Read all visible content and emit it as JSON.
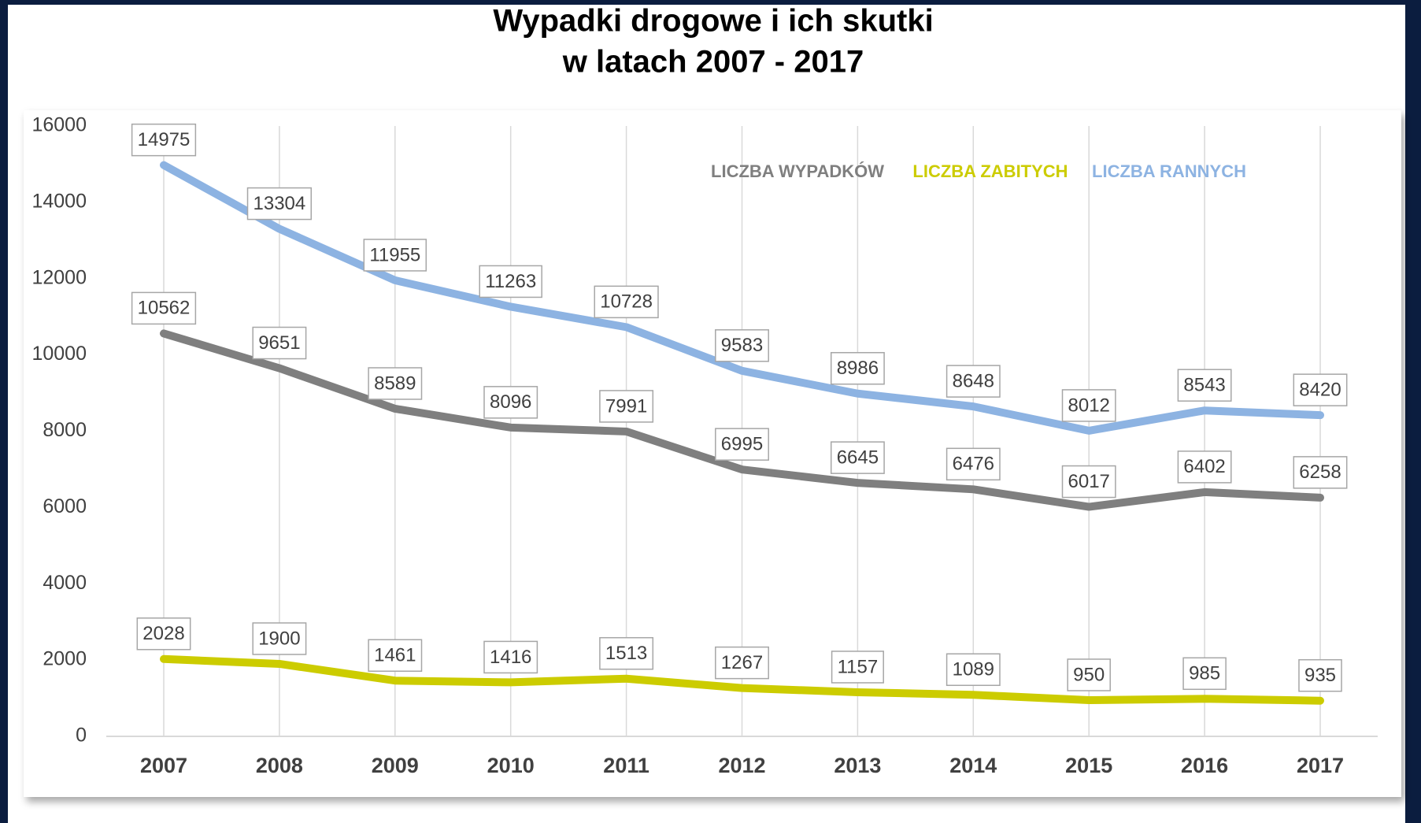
{
  "chart_data": {
    "type": "line",
    "title": "Wypadki drogowe i ich skutki",
    "subtitle": "w latach 2007 -  2017",
    "categories": [
      "2007",
      "2008",
      "2009",
      "2010",
      "2011",
      "2012",
      "2013",
      "2014",
      "2015",
      "2016",
      "2017"
    ],
    "series": [
      {
        "name": "LICZBA WYPADKÓW",
        "color": "#7f7f7f",
        "values": [
          10562,
          9651,
          8589,
          8096,
          7991,
          6995,
          6645,
          6476,
          6017,
          6402,
          6258
        ]
      },
      {
        "name": "LICZBA ZABITYCH",
        "color": "#cccc00",
        "values": [
          2028,
          1900,
          1461,
          1416,
          1513,
          1267,
          1157,
          1089,
          950,
          985,
          935
        ]
      },
      {
        "name": "LICZBA RANNYCH",
        "color": "#8db3e2",
        "values": [
          14975,
          13304,
          11955,
          11263,
          10728,
          9583,
          8986,
          8648,
          8012,
          8543,
          8420
        ]
      }
    ],
    "ylim": [
      0,
      16000
    ],
    "yticks": [
      0,
      2000,
      4000,
      6000,
      8000,
      10000,
      12000,
      14000,
      16000
    ],
    "legend": "top-right"
  }
}
